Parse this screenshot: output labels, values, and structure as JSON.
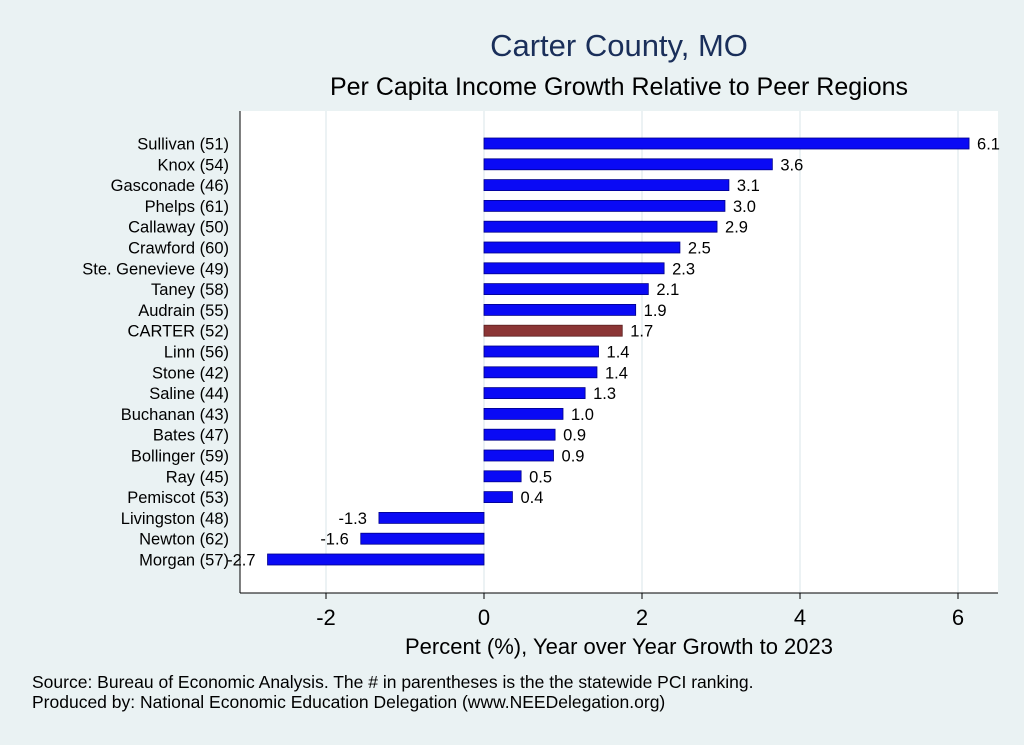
{
  "chart_data": {
    "type": "bar",
    "orientation": "horizontal",
    "title": "Carter County, MO",
    "subtitle": "Per Capita Income Growth Relative to Peer Regions",
    "xlabel": "Percent (%), Year over Year Growth to 2023",
    "xlim": [
      -3.1,
      6.45
    ],
    "xticks": [
      -2,
      0,
      2,
      4,
      6
    ],
    "xtick_labels": [
      "-2",
      "0",
      "2",
      "4",
      "6"
    ],
    "grid": true,
    "categories": [
      "Sullivan (51)",
      "Knox (54)",
      "Gasconade (46)",
      "Phelps (61)",
      "Callaway (50)",
      "Crawford (60)",
      "Ste. Genevieve (49)",
      "Taney (58)",
      "Audrain (55)",
      "CARTER (52)",
      "Linn (56)",
      "Stone (42)",
      "Saline (44)",
      "Buchanan (43)",
      "Bates (47)",
      "Bollinger (59)",
      "Ray (45)",
      "Pemiscot (53)",
      "Livingston (48)",
      "Newton (62)",
      "Morgan (57)"
    ],
    "values": [
      6.14,
      3.65,
      3.1,
      3.05,
      2.95,
      2.48,
      2.28,
      2.08,
      1.92,
      1.75,
      1.45,
      1.43,
      1.28,
      1.0,
      0.9,
      0.88,
      0.47,
      0.36,
      -1.33,
      -1.56,
      -2.74
    ],
    "data_labels": [
      "6.1",
      "3.6",
      "3.1",
      "3.0",
      "2.9",
      "2.5",
      "2.3",
      "2.1",
      "1.9",
      "1.7",
      "1.4",
      "1.4",
      "1.3",
      "1.0",
      "0.9",
      "0.9",
      "0.5",
      "0.4",
      "-1.3",
      "-1.6",
      "-2.7"
    ],
    "highlight": "CARTER (52)",
    "colors": {
      "bar": "#0a0af5",
      "highlight": "#8b3535",
      "plot_bg": "#ffffff",
      "page_bg": "#eaf2f3",
      "grid": "#e6eef0",
      "title": "#1a2f5a"
    }
  },
  "notes": {
    "source": "Source: Bureau of Economic Analysis. The # in parentheses is the the statewide PCI ranking.",
    "producer": "Produced by: National Economic Education Delegation (www.NEEDelegation.org)"
  }
}
